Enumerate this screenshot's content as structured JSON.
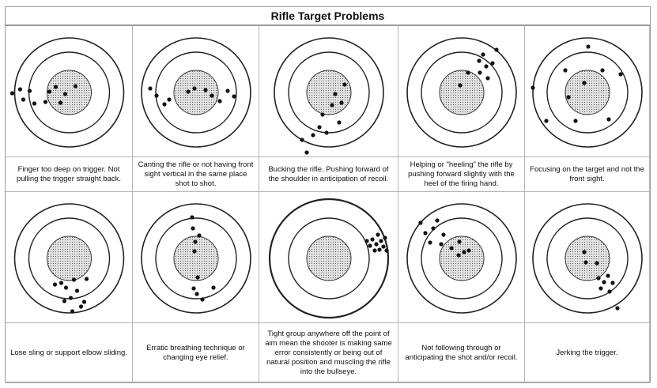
{
  "title": "Rifle Target Problems",
  "targets": [
    {
      "caption": "Finger too deep on trigger.  Not pulling the trigger straight back.",
      "shots": [
        [
          -72,
          1
        ],
        [
          -62,
          -4
        ],
        [
          -58,
          9
        ],
        [
          -50,
          -2
        ],
        [
          -44,
          14
        ],
        [
          -30,
          12
        ],
        [
          -25,
          -1
        ],
        [
          -17,
          -7
        ],
        [
          -11,
          13
        ],
        [
          -5,
          2
        ],
        [
          8,
          -8
        ]
      ]
    },
    {
      "caption": "Canting the rifle or not having front sight vertical in the same place shot to shot.",
      "shots": [
        [
          -58,
          -5
        ],
        [
          -50,
          4
        ],
        [
          -40,
          15
        ],
        [
          -34,
          9
        ],
        [
          -10,
          -1
        ],
        [
          -2,
          -5
        ],
        [
          12,
          -3
        ],
        [
          20,
          4
        ],
        [
          30,
          11
        ],
        [
          40,
          -2
        ],
        [
          48,
          5
        ]
      ]
    },
    {
      "caption": "Bucking the rifle.  Pushing forward of the shoulder in anticipation of recoil.",
      "shots": [
        [
          -34,
          60
        ],
        [
          -28,
          76
        ],
        [
          -20,
          54
        ],
        [
          -12,
          44
        ],
        [
          -8,
          28
        ],
        [
          -3,
          51
        ],
        [
          4,
          16
        ],
        [
          8,
          2
        ],
        [
          13,
          38
        ],
        [
          16,
          13
        ],
        [
          20,
          -10
        ]
      ]
    },
    {
      "caption": "Helping or \"heeling\" the rifle by pushing forward slightly with the heel of the firing hand.",
      "shots": [
        [
          -2,
          -9
        ],
        [
          8,
          -25
        ],
        [
          22,
          -40
        ],
        [
          23,
          -25
        ],
        [
          27,
          -48
        ],
        [
          31,
          -33
        ],
        [
          33,
          -18
        ],
        [
          39,
          -37
        ],
        [
          44,
          -54
        ]
      ]
    },
    {
      "caption": "Focusing on the target and not the front sight.",
      "shots": [
        [
          -69,
          -6
        ],
        [
          -52,
          36
        ],
        [
          -28,
          -28
        ],
        [
          -24,
          6
        ],
        [
          -15,
          36
        ],
        [
          -4,
          -12
        ],
        [
          1,
          -58
        ],
        [
          19,
          -28
        ],
        [
          27,
          34
        ],
        [
          42,
          -23
        ]
      ]
    },
    {
      "caption": "Lose sling or support elbow sliding.",
      "shots": [
        [
          -18,
          33
        ],
        [
          -10,
          31
        ],
        [
          -6,
          54
        ],
        [
          -4,
          37
        ],
        [
          2,
          50
        ],
        [
          4,
          67
        ],
        [
          6,
          27
        ],
        [
          10,
          41
        ],
        [
          15,
          61
        ],
        [
          19,
          55
        ],
        [
          22,
          26
        ]
      ]
    },
    {
      "caption": "Erratic breathing technique or changing eye relief.",
      "shots": [
        [
          -5,
          -52
        ],
        [
          -4,
          -38
        ],
        [
          -2,
          -9
        ],
        [
          -1,
          -21
        ],
        [
          -3,
          38
        ],
        [
          1,
          45
        ],
        [
          2,
          24
        ],
        [
          4,
          -29
        ],
        [
          8,
          52
        ],
        [
          22,
          37
        ]
      ]
    },
    {
      "caption": "Tight group anywhere off the point of aim mean the shooter is making same error consistently or being out of natural position and muscling the rifle into the bullseye.",
      "shots": [
        [
          48,
          -22
        ],
        [
          52,
          -16
        ],
        [
          55,
          -24
        ],
        [
          58,
          -10
        ],
        [
          60,
          -18
        ],
        [
          62,
          -30
        ],
        [
          64,
          -11
        ],
        [
          66,
          -22
        ],
        [
          69,
          -15
        ],
        [
          71,
          -26
        ],
        [
          73,
          -10
        ]
      ]
    },
    {
      "caption": "Not following through or anticipating the shot and/or recoil.",
      "shots": [
        [
          -52,
          -45
        ],
        [
          -46,
          -32
        ],
        [
          -40,
          -20
        ],
        [
          -36,
          -38
        ],
        [
          -31,
          -48
        ],
        [
          -26,
          -18
        ],
        [
          -23,
          -30
        ],
        [
          -13,
          -13
        ],
        [
          -4,
          -4
        ],
        [
          -3,
          -21
        ],
        [
          3,
          -8
        ],
        [
          9,
          -10
        ]
      ]
    },
    {
      "caption": "Jerking the trigger.",
      "shots": [
        [
          -4,
          -8
        ],
        [
          -2,
          5
        ],
        [
          12,
          6
        ],
        [
          14,
          25
        ],
        [
          17,
          38
        ],
        [
          21,
          30
        ],
        [
          26,
          22
        ],
        [
          28,
          42
        ],
        [
          32,
          31
        ],
        [
          38,
          63
        ]
      ]
    }
  ]
}
